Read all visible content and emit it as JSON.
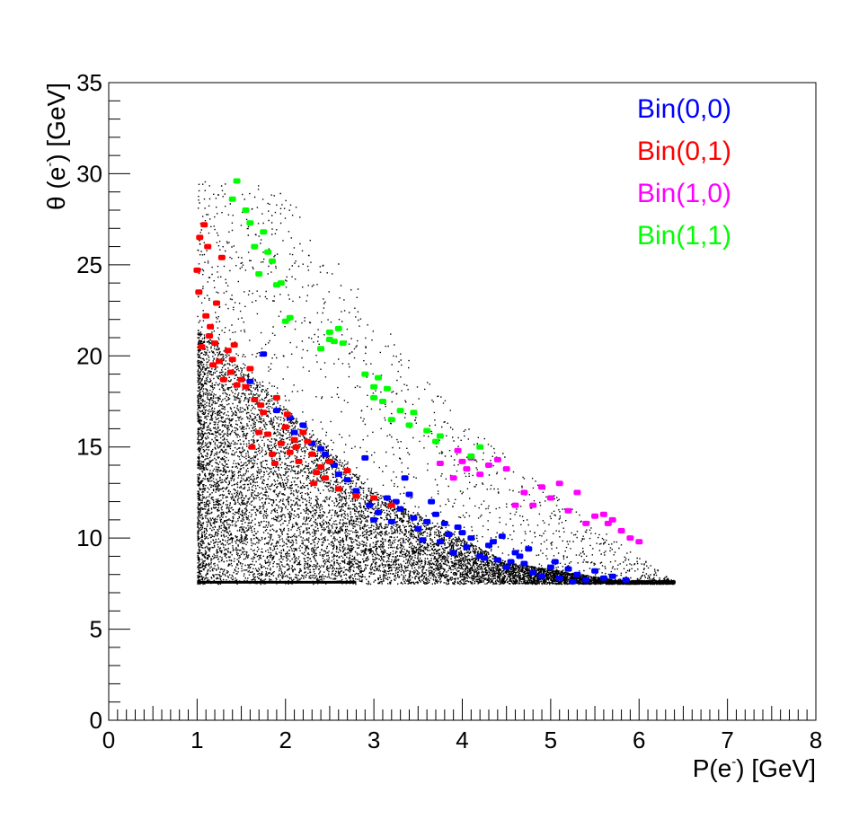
{
  "chart_data": {
    "type": "scatter",
    "title": "",
    "xlabel_main": "P(e",
    "xlabel_sup": "-",
    "xlabel_tail": ") [GeV]",
    "ylabel_main": "θ (e",
    "ylabel_sup": "-",
    "ylabel_tail": ") [GeV]",
    "xlim": [
      0,
      8
    ],
    "ylim": [
      0,
      35
    ],
    "x_ticks": [
      "0",
      "1",
      "2",
      "3",
      "4",
      "5",
      "6",
      "7",
      "8"
    ],
    "y_ticks": [
      "0",
      "5",
      "10",
      "15",
      "20",
      "25",
      "30",
      "35"
    ],
    "grid": false,
    "legend_placement": "top-right",
    "background_density": {
      "name": "all events",
      "color": "#000000",
      "p_min": 1.0,
      "theta_min": 7.5,
      "p_max": 6.4,
      "theta_max": 29.6
    },
    "series": [
      {
        "name": "Bin(0,0)",
        "color": "#0000ff",
        "x": [
          1.75,
          1.9,
          2.05,
          2.1,
          2.3,
          2.45,
          2.55,
          2.7,
          2.8,
          2.95,
          3.05,
          3.15,
          3.2,
          3.3,
          3.4,
          3.5,
          3.6,
          3.7,
          3.75,
          3.85,
          3.95,
          4.05,
          4.1,
          4.2,
          4.3,
          4.4,
          4.5,
          4.6,
          4.7,
          4.8,
          4.9,
          5.0,
          5.1,
          5.2,
          5.3,
          5.4,
          5.5,
          5.6,
          5.7,
          5.85,
          3.0,
          3.25,
          3.55,
          3.9,
          4.35,
          4.65,
          2.4,
          2.6,
          2.9,
          3.45,
          3.65,
          4.0,
          4.25,
          4.55,
          4.75,
          5.05,
          5.25,
          1.6,
          2.2,
          3.35,
          3.8,
          4.45
        ],
        "y": [
          20.1,
          17.0,
          16.6,
          15.8,
          15.2,
          14.6,
          14.0,
          13.2,
          12.6,
          11.8,
          11.4,
          12.2,
          10.9,
          11.6,
          12.4,
          10.5,
          10.9,
          11.3,
          9.8,
          10.2,
          10.6,
          9.5,
          10.0,
          9.0,
          9.6,
          8.8,
          8.4,
          9.2,
          8.6,
          8.1,
          7.9,
          8.4,
          7.8,
          8.3,
          8.0,
          7.7,
          8.2,
          7.8,
          7.9,
          7.7,
          11.0,
          12.0,
          9.9,
          9.2,
          9.8,
          9.0,
          14.9,
          13.5,
          14.4,
          11.1,
          12.0,
          10.3,
          8.9,
          8.7,
          9.4,
          8.7,
          7.6,
          18.6,
          16.2,
          13.3,
          10.8,
          10.1
        ]
      },
      {
        "name": "Bin(0,1)",
        "color": "#ff0000",
        "x": [
          1.0,
          1.02,
          1.05,
          1.1,
          1.12,
          1.15,
          1.18,
          1.2,
          1.25,
          1.28,
          1.3,
          1.35,
          1.4,
          1.45,
          1.5,
          1.55,
          1.6,
          1.65,
          1.7,
          1.75,
          1.8,
          1.85,
          1.9,
          1.95,
          2.0,
          2.05,
          2.1,
          2.15,
          2.2,
          2.25,
          2.3,
          2.35,
          2.4,
          2.45,
          2.5,
          2.6,
          2.7,
          2.8,
          3.0,
          3.2,
          1.08,
          1.22,
          1.38,
          1.62,
          1.88,
          2.12,
          2.32,
          1.03,
          1.14,
          1.42,
          1.72,
          2.02
        ],
        "y": [
          24.7,
          23.5,
          20.5,
          22.2,
          26.0,
          21.6,
          19.5,
          20.7,
          19.7,
          25.4,
          18.7,
          20.3,
          19.8,
          18.4,
          18.7,
          18.3,
          19.3,
          17.6,
          15.8,
          16.9,
          15.7,
          14.6,
          17.7,
          15.2,
          16.1,
          14.7,
          15.4,
          14.2,
          15.8,
          15.3,
          14.6,
          13.6,
          13.9,
          13.3,
          14.2,
          12.7,
          13.7,
          12.3,
          12.2,
          11.8,
          27.2,
          22.9,
          19.1,
          15.0,
          14.1,
          15.0,
          13.0,
          26.5,
          21.1,
          20.6,
          17.3,
          16.8
        ]
      },
      {
        "name": "Bin(1,0)",
        "color": "#ff00ff",
        "x": [
          3.95,
          4.0,
          4.05,
          4.1,
          4.2,
          4.3,
          4.4,
          4.5,
          4.6,
          4.7,
          4.8,
          4.9,
          5.0,
          5.1,
          5.2,
          5.3,
          5.4,
          5.5,
          5.6,
          5.65,
          5.7,
          5.8,
          5.9,
          6.0,
          3.75,
          3.9
        ],
        "y": [
          14.8,
          14.2,
          13.8,
          14.4,
          13.5,
          14.0,
          14.3,
          13.8,
          11.8,
          12.5,
          11.8,
          12.8,
          12.2,
          13.0,
          11.5,
          12.5,
          10.8,
          11.2,
          11.3,
          10.8,
          11.0,
          10.4,
          10.0,
          9.8,
          14.1,
          13.3
        ]
      },
      {
        "name": "Bin(1,1)",
        "color": "#00ff00",
        "x": [
          1.4,
          1.45,
          1.55,
          1.6,
          1.65,
          1.7,
          1.8,
          1.85,
          1.9,
          1.95,
          2.0,
          2.05,
          2.4,
          2.5,
          2.55,
          2.6,
          2.65,
          2.9,
          3.0,
          3.05,
          3.1,
          3.15,
          3.2,
          3.3,
          3.4,
          3.6,
          3.7,
          3.75,
          4.1,
          4.2,
          1.75,
          2.5,
          3.0,
          3.45
        ],
        "y": [
          28.6,
          29.6,
          28.0,
          27.3,
          26.0,
          24.5,
          25.7,
          25.2,
          23.9,
          24.0,
          21.9,
          22.1,
          20.4,
          21.3,
          20.8,
          21.5,
          20.7,
          19.0,
          17.7,
          18.8,
          17.5,
          18.2,
          16.5,
          17.0,
          16.2,
          15.9,
          15.3,
          15.6,
          14.5,
          15.0,
          26.8,
          20.9,
          18.3,
          16.9
        ]
      }
    ],
    "legend": [
      {
        "label": "Bin(0,0)",
        "color": "#0000ff"
      },
      {
        "label": "Bin(0,1)",
        "color": "#ff0000"
      },
      {
        "label": "Bin(1,0)",
        "color": "#ff00ff"
      },
      {
        "label": "Bin(1,1)",
        "color": "#00ff00"
      }
    ]
  }
}
